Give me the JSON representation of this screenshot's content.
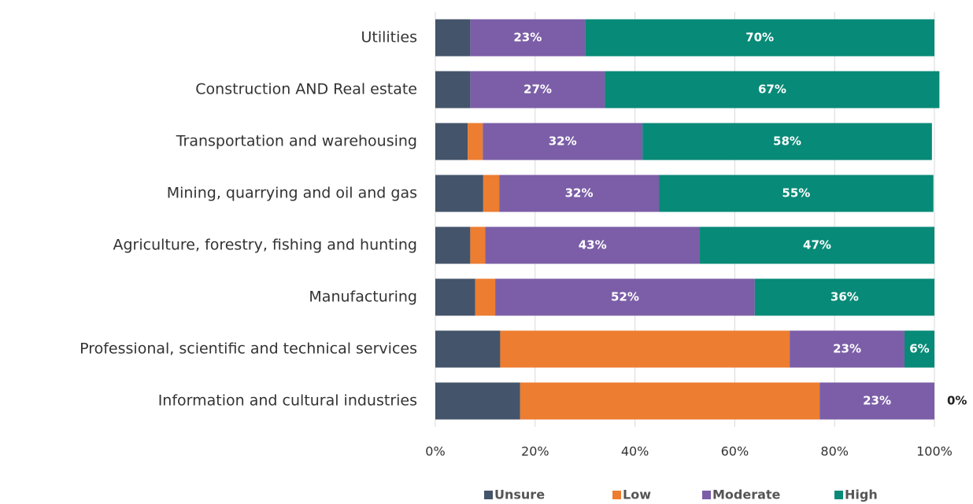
{
  "chart_data": {
    "type": "stacked-barh",
    "categories": [
      "Utilities",
      "Construction AND Real estate",
      "Transportation and warehousing",
      "Mining, quarrying and oil and gas",
      "Agriculture, forestry, fishing and hunting",
      "Manufacturing",
      "Professional, scientific and technical services",
      "Information and cultural industries"
    ],
    "series": [
      {
        "name": "Unsure",
        "color": "#44546a",
        "values": [
          7,
          7,
          6.5,
          9.6,
          7,
          8,
          13,
          17
        ]
      },
      {
        "name": "Low",
        "color": "#ed7d31",
        "values": [
          0,
          0,
          3,
          3.2,
          3,
          4,
          58,
          60
        ]
      },
      {
        "name": "Moderate",
        "color": "#7b5ea7",
        "values": [
          23,
          27,
          32,
          32,
          43,
          52,
          23,
          23
        ],
        "value_labels": [
          "23%",
          "27%",
          "32%",
          "32%",
          "43%",
          "52%",
          "23%",
          "23%"
        ]
      },
      {
        "name": "High",
        "color": "#078a77",
        "values": [
          70,
          67,
          58,
          55,
          47,
          36,
          6,
          0
        ],
        "value_labels": [
          "70%",
          "67%",
          "58%",
          "55%",
          "47%",
          "36%",
          "6%",
          "0%"
        ]
      }
    ],
    "xlim": [
      0,
      100
    ],
    "xticks": [
      {
        "value": 0,
        "label": "0%"
      },
      {
        "value": 20,
        "label": "20%"
      },
      {
        "value": 40,
        "label": "40%"
      },
      {
        "value": 60,
        "label": "60%"
      },
      {
        "value": 80,
        "label": "80%"
      },
      {
        "value": 100,
        "label": "100%"
      }
    ],
    "grid": true,
    "legend": "bottom"
  }
}
